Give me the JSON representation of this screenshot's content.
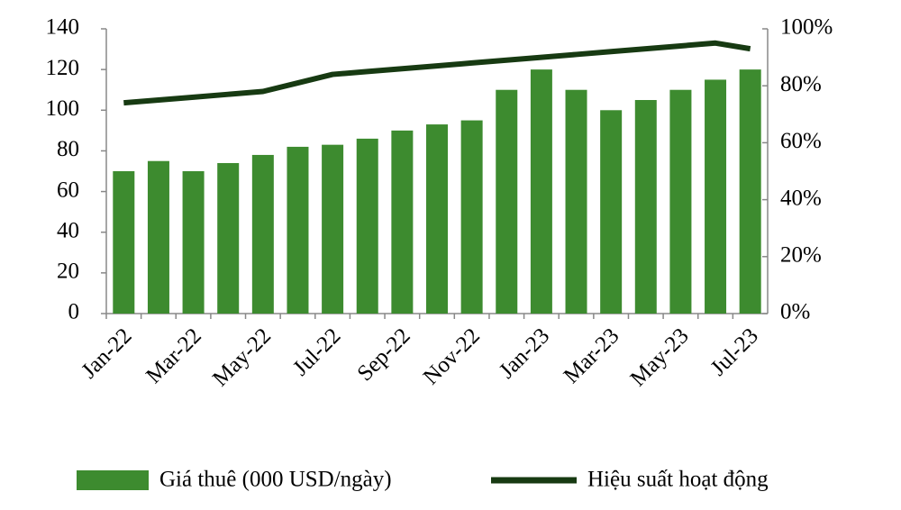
{
  "chart_data": {
    "type": "bar-line",
    "categories": [
      "Jan-22",
      null,
      "Mar-22",
      null,
      "May-22",
      null,
      "Jul-22",
      null,
      "Sep-22",
      null,
      "Nov-22",
      null,
      "Jan-23",
      null,
      "Mar-23",
      null,
      "May-23",
      null,
      "Jul-23"
    ],
    "series": [
      {
        "name": "Giá thuê (000 USD/ngày)",
        "type": "bar",
        "color": "#3d8b2f",
        "axis": "y",
        "values": [
          70,
          75,
          70,
          74,
          78,
          82,
          83,
          86,
          90,
          93,
          95,
          110,
          120,
          110,
          100,
          105,
          110,
          115,
          120
        ]
      },
      {
        "name": "Hiệu suất hoạt động",
        "type": "line",
        "color": "#173a12",
        "axis": "y2",
        "values": [
          74,
          75,
          76,
          77,
          78,
          81,
          84,
          85,
          86,
          87,
          88,
          89,
          90,
          91,
          92,
          93,
          94,
          95,
          93
        ]
      }
    ],
    "ylim": [
      0,
      140
    ],
    "yticks": [
      0,
      20,
      40,
      60,
      80,
      100,
      120,
      140
    ],
    "y2lim": [
      0,
      100
    ],
    "y2ticks": [
      {
        "value": 0,
        "label": "0%"
      },
      {
        "value": 20,
        "label": "20%"
      },
      {
        "value": 40,
        "label": "40%"
      },
      {
        "value": 60,
        "label": "60%"
      },
      {
        "value": 80,
        "label": "80%"
      },
      {
        "value": 100,
        "label": "100%"
      }
    ],
    "legend": "bottom"
  }
}
